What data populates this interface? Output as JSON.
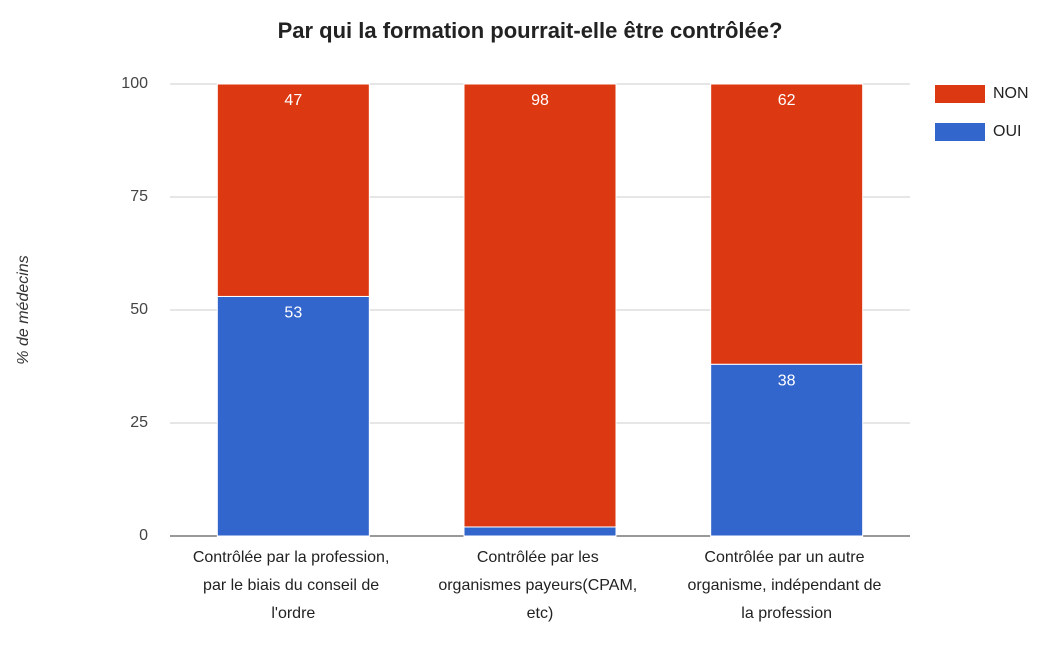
{
  "chart_data": {
    "type": "stacked_bar",
    "title": "Par qui la formation pourrait-elle être contrôlée?",
    "y_label": "% de médecins",
    "categories": [
      "Contrôlée par la profession, par le biais du conseil de l'ordre",
      "Contrôlée par les organismes payeurs(CPAM, etc)",
      "Contrôlée par un autre organisme, indépendant de la profession"
    ],
    "series": [
      {
        "name": "OUI",
        "color": "#3366cc",
        "values": [
          53,
          2,
          38
        ]
      },
      {
        "name": "NON",
        "color": "#dc3912",
        "values": [
          47,
          98,
          62
        ]
      }
    ],
    "ylim": [
      0,
      100
    ],
    "yticks": [
      0,
      25,
      50,
      75,
      100
    ],
    "grid": true,
    "legend": "right"
  }
}
